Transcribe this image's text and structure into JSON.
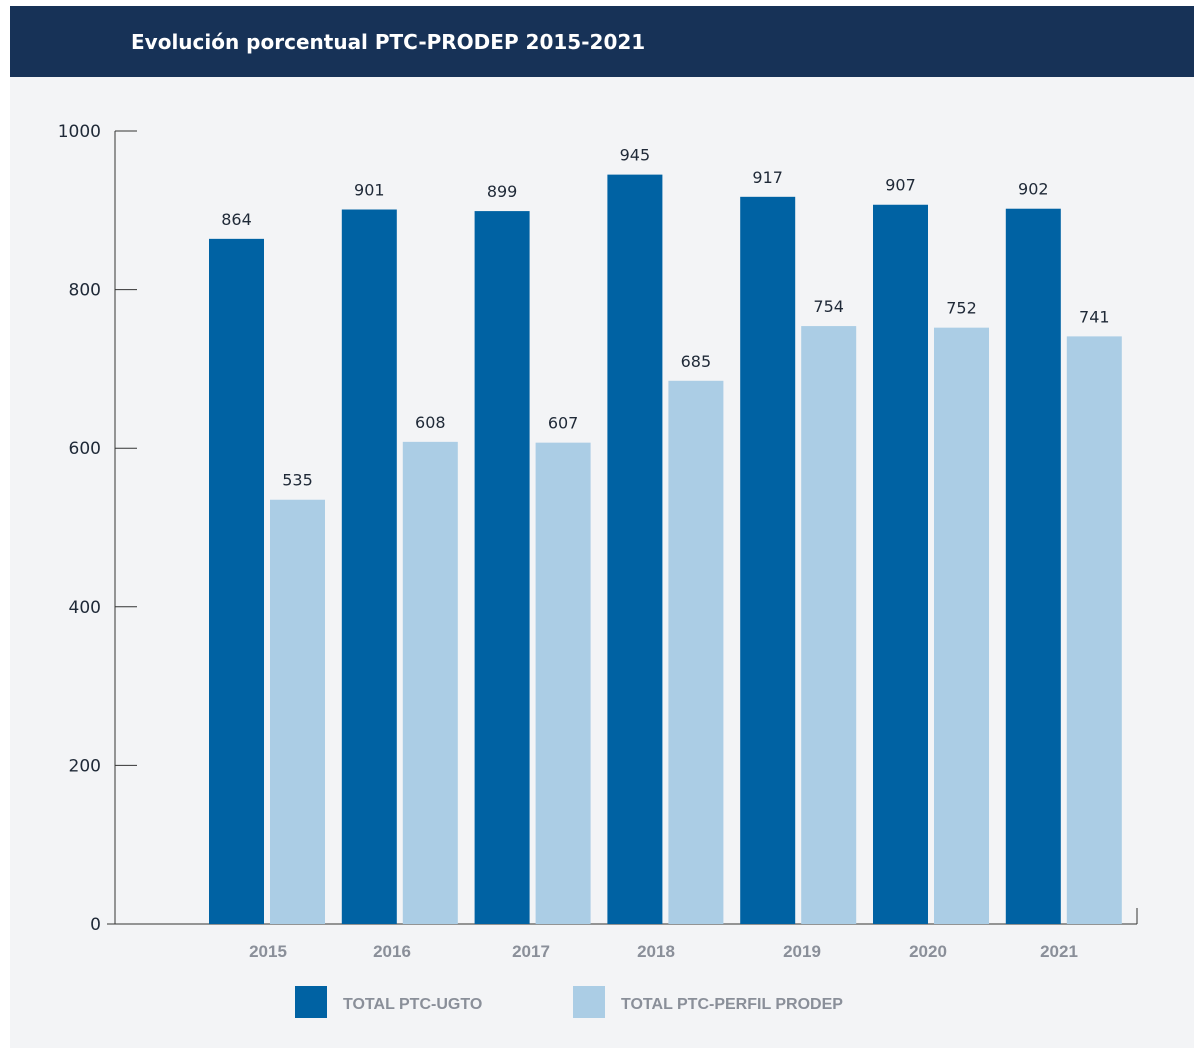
{
  "header": {
    "title": "Evolución porcentual PTC-PRODEP 2015-2021"
  },
  "colors": {
    "header_bg": "#173257",
    "panel_bg": "#f3f4f6",
    "series_dark": "#0062a3",
    "series_light": "#abcde5"
  },
  "chart_data": {
    "type": "bar",
    "title": "Evolución porcentual PTC-PRODEP 2015-2021",
    "xlabel": "",
    "ylabel": "",
    "categories": [
      "2015",
      "2016",
      "2017",
      "2018",
      "2019",
      "2020",
      "2021"
    ],
    "series": [
      {
        "name": "TOTAL PTC-UGTO",
        "color": "#0062a3",
        "values": [
          864,
          901,
          899,
          945,
          917,
          907,
          902
        ]
      },
      {
        "name": "TOTAL PTC-PERFIL PRODEP",
        "color": "#abcde5",
        "values": [
          535,
          608,
          607,
          685,
          754,
          752,
          741
        ]
      }
    ],
    "ylim": [
      0,
      1000
    ],
    "yticks": [
      "0",
      "200",
      "400",
      "600",
      "800",
      "1000"
    ],
    "grid": false,
    "legend_position": "bottom"
  }
}
